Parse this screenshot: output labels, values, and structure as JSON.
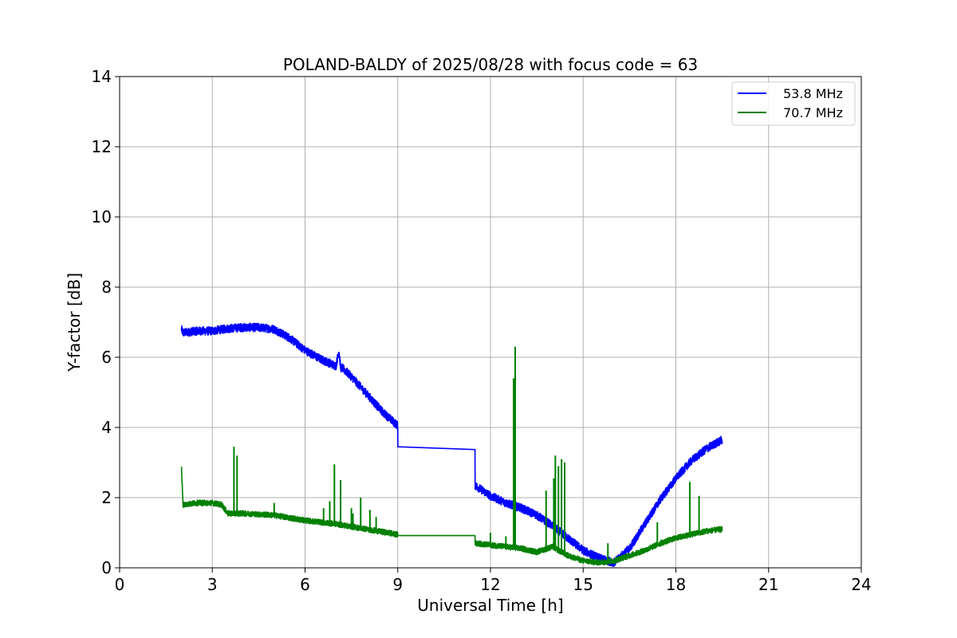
{
  "chart_data": {
    "type": "line",
    "title": "POLAND-BALDY of 2025/08/28 with focus code = 63",
    "xlabel": "Universal Time [h]",
    "ylabel": "Y-factor [dB]",
    "xlim": [
      0,
      24
    ],
    "ylim": [
      0,
      14
    ],
    "xticks": [
      0,
      3,
      6,
      9,
      12,
      15,
      18,
      21,
      24
    ],
    "yticks": [
      0,
      2,
      4,
      6,
      8,
      10,
      12,
      14
    ],
    "grid": true,
    "legend_position": "top-right",
    "series": [
      {
        "name": "53.8 MHz",
        "color": "#0000ff",
        "x": [
          2.0,
          2.05,
          2.5,
          3.0,
          3.5,
          4.0,
          4.5,
          5.0,
          5.5,
          6.0,
          6.5,
          7.0,
          7.1,
          7.15,
          7.2,
          7.5,
          8.0,
          8.5,
          9.0,
          9.0,
          11.5,
          11.5,
          12.0,
          12.5,
          13.0,
          13.5,
          14.0,
          14.5,
          15.0,
          15.5,
          16.0,
          16.5,
          17.0,
          17.5,
          18.0,
          18.5,
          19.0,
          19.5
        ],
        "y": [
          6.8,
          6.7,
          6.75,
          6.75,
          6.82,
          6.85,
          6.85,
          6.8,
          6.55,
          6.2,
          5.95,
          5.75,
          6.2,
          5.7,
          5.7,
          5.45,
          4.95,
          4.45,
          4.05,
          3.45,
          3.37,
          2.35,
          2.05,
          1.85,
          1.7,
          1.5,
          1.2,
          0.85,
          0.5,
          0.28,
          0.15,
          0.55,
          1.25,
          1.95,
          2.55,
          3.05,
          3.4,
          3.65
        ],
        "band": 0.12
      },
      {
        "name": "70.7 MHz",
        "color": "#008000",
        "x": [
          2.0,
          2.05,
          2.5,
          3.0,
          3.3,
          3.5,
          4.0,
          5.0,
          6.0,
          7.0,
          8.0,
          9.0,
          9.0,
          11.5,
          11.5,
          12.0,
          13.0,
          13.5,
          14.0,
          14.5,
          15.0,
          15.5,
          16.0,
          16.5,
          17.0,
          17.5,
          18.0,
          18.5,
          19.0,
          19.5
        ],
        "y": [
          2.9,
          1.8,
          1.85,
          1.85,
          1.8,
          1.55,
          1.55,
          1.5,
          1.35,
          1.25,
          1.1,
          0.95,
          0.92,
          0.92,
          0.7,
          0.65,
          0.55,
          0.45,
          0.6,
          0.35,
          0.2,
          0.15,
          0.2,
          0.35,
          0.5,
          0.7,
          0.85,
          0.95,
          1.05,
          1.1
        ],
        "band": 0.08,
        "spikes": [
          [
            2.0,
            2.9
          ],
          [
            3.7,
            3.45
          ],
          [
            3.8,
            3.2
          ],
          [
            5.0,
            1.85
          ],
          [
            6.6,
            1.7
          ],
          [
            6.8,
            1.9
          ],
          [
            6.95,
            2.95
          ],
          [
            7.15,
            2.5
          ],
          [
            7.5,
            1.7
          ],
          [
            7.55,
            1.55
          ],
          [
            7.8,
            2.0
          ],
          [
            8.1,
            1.65
          ],
          [
            8.3,
            1.45
          ],
          [
            12.0,
            1.0
          ],
          [
            12.5,
            0.9
          ],
          [
            12.75,
            5.4
          ],
          [
            12.8,
            6.3
          ],
          [
            13.8,
            2.2
          ],
          [
            14.05,
            2.55
          ],
          [
            14.1,
            3.2
          ],
          [
            14.2,
            2.9
          ],
          [
            14.3,
            3.1
          ],
          [
            14.4,
            3.0
          ],
          [
            15.8,
            0.7
          ],
          [
            17.4,
            1.3
          ],
          [
            18.45,
            2.45
          ],
          [
            18.75,
            2.05
          ]
        ]
      }
    ]
  }
}
